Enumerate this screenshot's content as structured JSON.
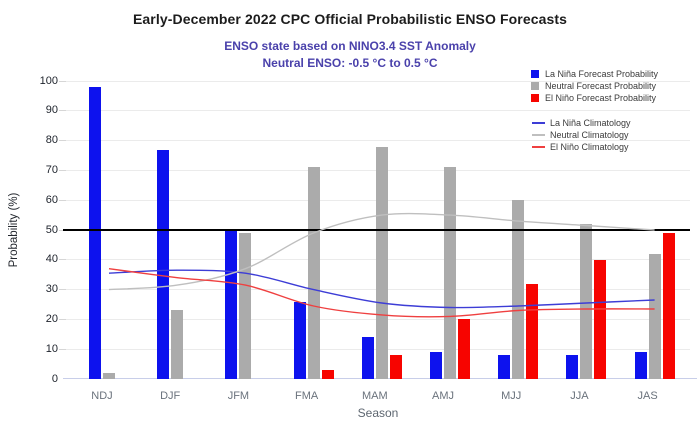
{
  "header": {
    "title": "Early-December 2022 CPC Official Probabilistic ENSO Forecasts",
    "subtitle1": "ENSO state based on NINO3.4 SST Anomaly",
    "subtitle2": "Neutral ENSO: -0.5 °C to 0.5 °C"
  },
  "colors": {
    "subtitle_text": "#4A41AB",
    "grid": "#ebebeb",
    "reference_line": "#000000",
    "bottom_axis": "#c8cee9",
    "la_nina_bar": "#0d12ee",
    "neutral_bar": "#ababab",
    "el_nino_bar": "#f70400",
    "la_nina_line": "#3d3dd6",
    "neutral_line": "#bfbfbf",
    "el_nino_line": "#ef4040"
  },
  "chart_data": {
    "type": "bar",
    "categories": [
      "NDJ",
      "DJF",
      "JFM",
      "FMA",
      "MAM",
      "AMJ",
      "MJJ",
      "JJA",
      "JAS"
    ],
    "series": [
      {
        "name": "La Niña Forecast Probability",
        "color": "#0d12ee",
        "values": [
          98,
          77,
          50,
          26,
          14,
          9,
          8,
          8,
          9
        ]
      },
      {
        "name": "Neutral Forecast Probability",
        "color": "#ababab",
        "values": [
          2,
          23,
          49,
          71,
          78,
          71,
          60,
          52,
          42
        ]
      },
      {
        "name": "El Niño Forecast Probability",
        "color": "#f70400",
        "values": [
          0,
          0,
          0,
          3,
          8,
          20,
          32,
          40,
          49
        ]
      }
    ],
    "line_series": [
      {
        "name": "La Niña Climatology",
        "color": "#3d3dd6",
        "values": [
          35.5,
          36.5,
          35.5,
          30,
          25.5,
          24,
          24.5,
          25.5,
          26.5
        ]
      },
      {
        "name": "Neutral Climatology",
        "color": "#bfbfbf",
        "values": [
          30,
          31.5,
          37,
          49,
          55,
          55,
          53,
          51.5,
          50
        ]
      },
      {
        "name": "El Niño Climatology",
        "color": "#ef4040",
        "values": [
          37,
          34,
          31.5,
          24.5,
          21.5,
          21,
          23,
          23.5,
          23.5
        ]
      }
    ],
    "xlabel": "Season",
    "ylabel": "Probability (%)",
    "ylim": [
      0,
      100
    ],
    "ytick_step": 10,
    "reference_line": 50,
    "grid": true,
    "legend_position": "top-right"
  }
}
